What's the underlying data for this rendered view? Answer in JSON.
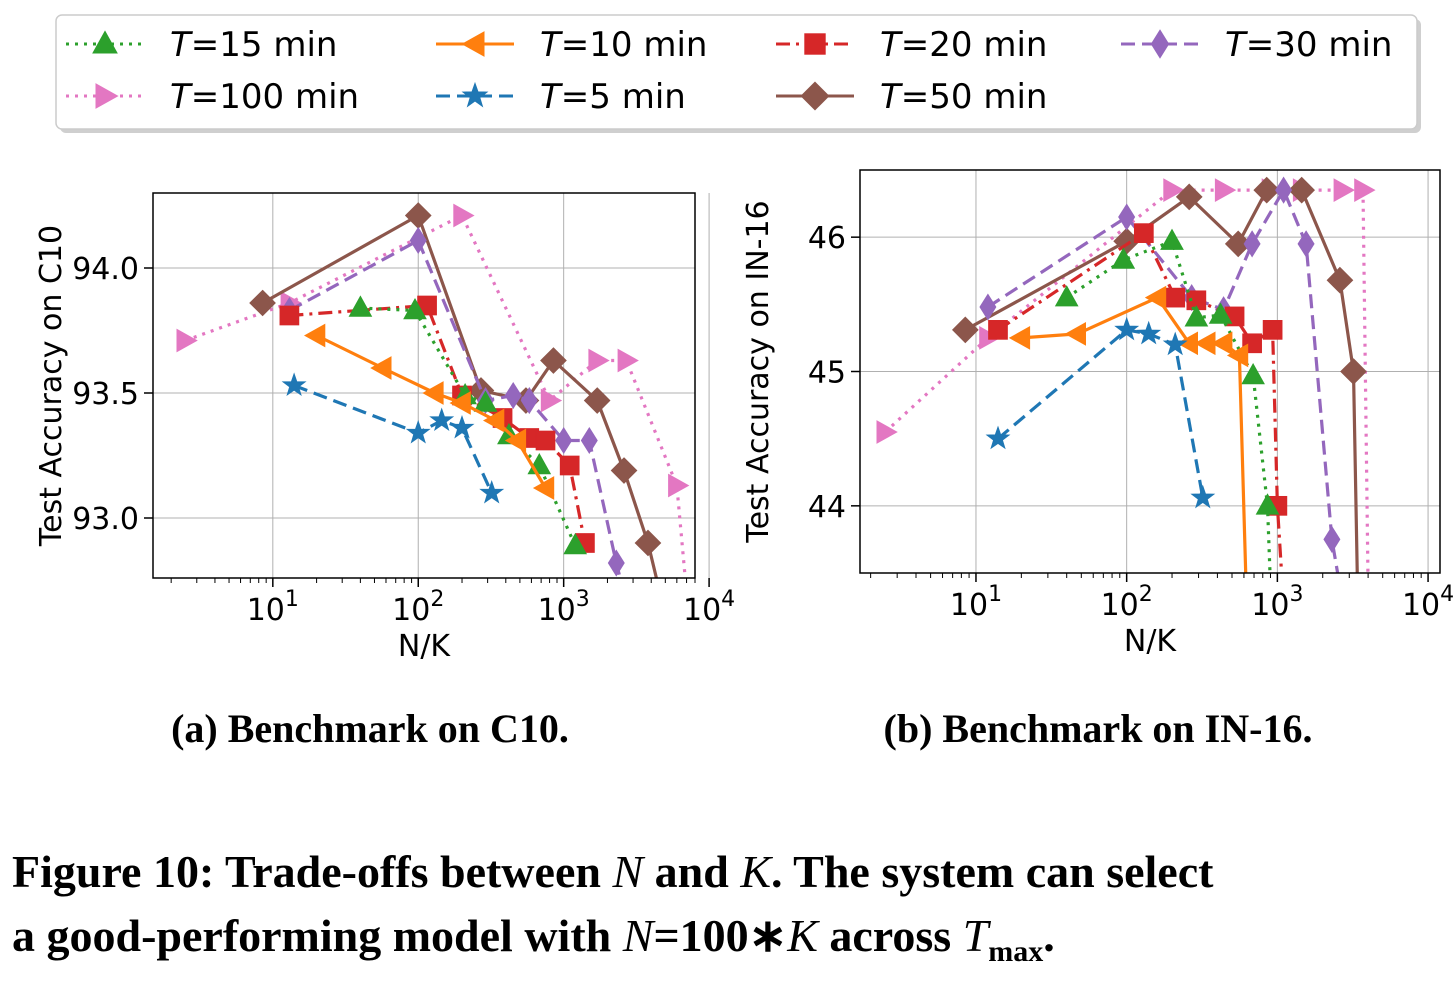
{
  "legend": {
    "position": "top",
    "entries": [
      {
        "name": "T=15 min",
        "color": "#2ca02c",
        "marker": "triangle-up",
        "dash": "dotted"
      },
      {
        "name": "T=10 min",
        "color": "#ff7f0e",
        "marker": "triangle-left",
        "dash": "solid"
      },
      {
        "name": "T=20 min",
        "color": "#d62728",
        "marker": "square",
        "dash": "dashdot"
      },
      {
        "name": "T=30 min",
        "color": "#9467bd",
        "marker": "diamond-thin",
        "dash": "dashed"
      },
      {
        "name": "T=100 min",
        "color": "#e377c2",
        "marker": "triangle-right",
        "dash": "dotted"
      },
      {
        "name": "T=5 min",
        "color": "#1f77b4",
        "marker": "star",
        "dash": "dashed"
      },
      {
        "name": "T=50 min",
        "color": "#8c564b",
        "marker": "diamond",
        "dash": "solid"
      }
    ]
  },
  "captions": {
    "sub_a": "(a) Benchmark on C10.",
    "sub_b": "(b) Benchmark on IN-16.",
    "figure_line1_a": "Figure 10: Trade-offs between ",
    "figure_line1_N": "N",
    "figure_line1_b": " and ",
    "figure_line1_K": "K",
    "figure_line1_c": ". The system can select",
    "figure_line2_a": "a good-performing model with ",
    "figure_line2_N": "N",
    "figure_line2_b": "=100∗",
    "figure_line2_K": "K",
    "figure_line2_c": " across ",
    "figure_line2_T": "T",
    "figure_line2_sub": "max",
    "figure_line2_d": "."
  },
  "chart_data": [
    {
      "type": "line",
      "title": "",
      "xlabel": "N/K",
      "ylabel": "Test Accuracy on C10",
      "xscale": "log",
      "xlim": [
        1.5,
        8000
      ],
      "ylim": [
        92.76,
        94.3
      ],
      "xticks": [
        10,
        100,
        1000,
        10000
      ],
      "xtick_labels": [
        "10^1",
        "10^2",
        "10^3",
        "10^4"
      ],
      "yticks": [
        93.0,
        93.5,
        94.0
      ],
      "ytick_labels": [
        "93.0",
        "93.5",
        "94.0"
      ],
      "grid": true,
      "series": [
        {
          "name": "T=100 min",
          "x": [
            2.5,
            13,
            200,
            800,
            1700,
            2700,
            6000,
            7000
          ],
          "y": [
            93.71,
            93.86,
            94.21,
            93.47,
            93.63,
            93.63,
            93.13,
            92.7
          ]
        },
        {
          "name": "T=50 min",
          "x": [
            8.5,
            100,
            270,
            550,
            850,
            1700,
            2600,
            3800,
            4600
          ],
          "y": [
            93.86,
            94.21,
            93.51,
            93.47,
            93.63,
            93.47,
            93.19,
            92.9,
            92.7
          ]
        },
        {
          "name": "T=30 min",
          "x": [
            13,
            100,
            290,
            450,
            580,
            1000,
            1500,
            2300,
            2600
          ],
          "y": [
            93.83,
            94.11,
            93.47,
            93.49,
            93.47,
            93.31,
            93.31,
            92.82,
            92.7
          ]
        },
        {
          "name": "T=20 min",
          "x": [
            13,
            115,
            200,
            380,
            580,
            750,
            1100,
            1400
          ],
          "y": [
            93.81,
            93.85,
            93.49,
            93.4,
            93.32,
            93.31,
            93.21,
            92.9
          ]
        },
        {
          "name": "T=15 min",
          "x": [
            40,
            95,
            210,
            290,
            420,
            680,
            1200
          ],
          "y": [
            93.84,
            93.83,
            93.49,
            93.46,
            93.33,
            93.21,
            92.89
          ]
        },
        {
          "name": "T=10 min",
          "x": [
            20,
            57,
            130,
            200,
            340,
            480,
            750
          ],
          "y": [
            93.73,
            93.6,
            93.5,
            93.46,
            93.39,
            93.31,
            93.12
          ]
        },
        {
          "name": "T=5 min",
          "x": [
            14,
            100,
            145,
            200,
            320
          ],
          "y": [
            93.53,
            93.34,
            93.39,
            93.36,
            93.1
          ]
        }
      ]
    },
    {
      "type": "line",
      "title": "",
      "xlabel": "N/K",
      "ylabel": "Test Accuracy on IN-16",
      "xscale": "log",
      "xlim": [
        1.7,
        12000
      ],
      "ylim": [
        43.5,
        46.5
      ],
      "xticks": [
        10,
        100,
        1000,
        10000
      ],
      "xtick_labels": [
        "10^1",
        "10^2",
        "10^3",
        "10^4"
      ],
      "yticks": [
        44,
        45,
        46
      ],
      "ytick_labels": [
        "44",
        "45",
        "46"
      ],
      "grid": true,
      "series": [
        {
          "name": "T=100 min",
          "x": [
            2.5,
            12,
            200,
            440,
            900,
            1450,
            2700,
            3700,
            4000
          ],
          "y": [
            44.55,
            45.25,
            46.35,
            46.35,
            46.35,
            46.35,
            46.35,
            46.35,
            43.4
          ]
        },
        {
          "name": "T=50 min",
          "x": [
            8.5,
            100,
            260,
            550,
            850,
            1450,
            2600,
            3200,
            3400
          ],
          "y": [
            45.31,
            45.97,
            46.3,
            45.95,
            46.35,
            46.35,
            45.68,
            45.0,
            43.4
          ]
        },
        {
          "name": "T=30 min",
          "x": [
            12,
            100,
            270,
            440,
            680,
            1100,
            1550,
            2300,
            2600
          ],
          "y": [
            45.48,
            46.15,
            45.55,
            45.46,
            45.95,
            46.35,
            45.95,
            43.75,
            43.4
          ]
        },
        {
          "name": "T=20 min",
          "x": [
            14,
            130,
            210,
            290,
            520,
            680,
            930,
            1000,
            1080
          ],
          "y": [
            45.31,
            46.03,
            45.55,
            45.53,
            45.41,
            45.21,
            45.31,
            44.0,
            43.4
          ]
        },
        {
          "name": "T=15 min",
          "x": [
            40,
            95,
            200,
            290,
            420,
            690,
            860,
            900
          ],
          "y": [
            45.55,
            45.83,
            45.97,
            45.4,
            45.42,
            44.97,
            44.0,
            43.4
          ]
        },
        {
          "name": "T=10 min",
          "x": [
            20,
            47,
            160,
            260,
            340,
            440,
            560,
            620
          ],
          "y": [
            45.25,
            45.28,
            45.55,
            45.21,
            45.21,
            45.21,
            45.12,
            43.4
          ]
        },
        {
          "name": "T=5 min",
          "x": [
            14,
            100,
            140,
            210,
            320
          ],
          "y": [
            44.5,
            45.31,
            45.28,
            45.2,
            44.06
          ]
        }
      ]
    }
  ]
}
